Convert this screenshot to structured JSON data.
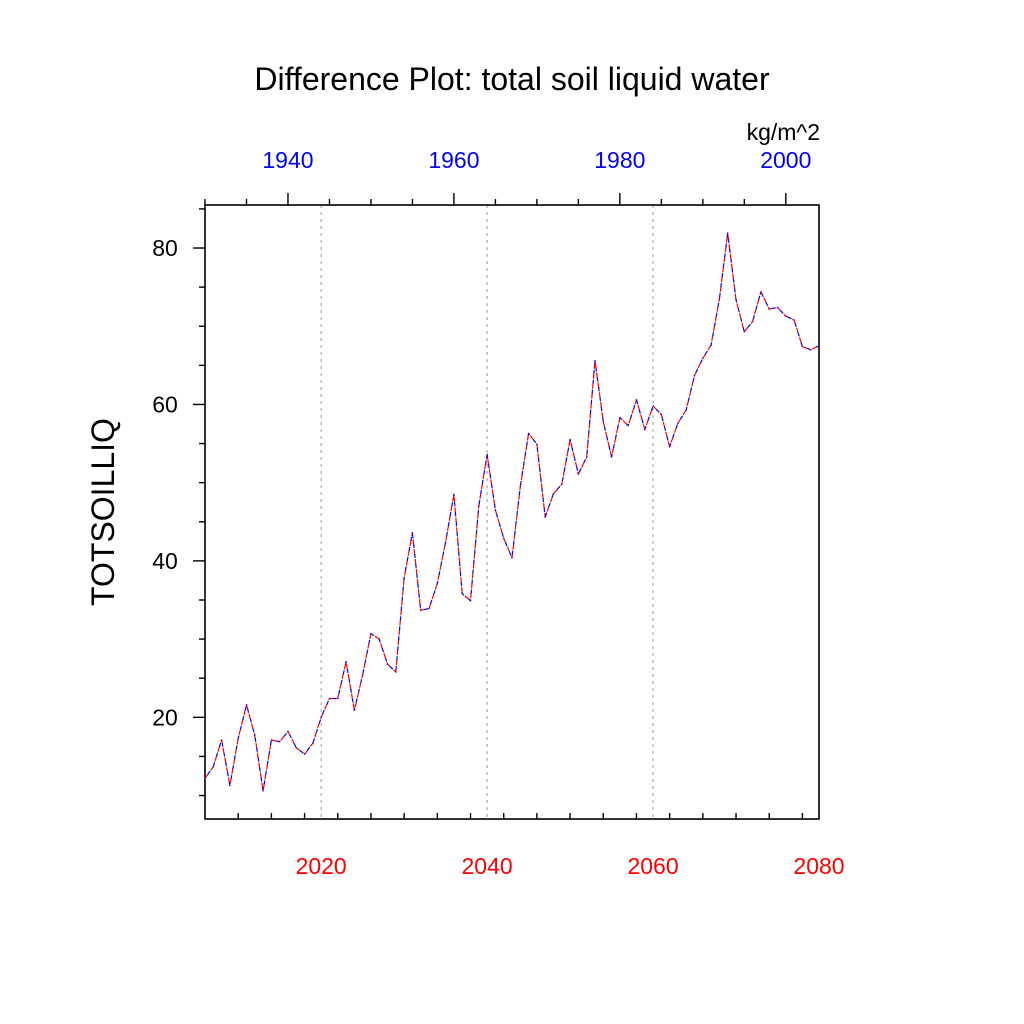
{
  "chart_data": {
    "type": "line",
    "title": "Difference Plot: total soil liquid water",
    "ylabel": "TOTSOILLIQ",
    "units": "kg/m^2",
    "ylim": [
      7,
      85.5
    ],
    "y_ticks": [
      20,
      40,
      60,
      80
    ],
    "y_minor_step": 5,
    "bottom_axis": {
      "color": "#ff0000",
      "range": [
        2006,
        2080
      ],
      "ticks": [
        2020,
        2040,
        2060,
        2080
      ],
      "minor_step": 4
    },
    "top_axis": {
      "color": "#0000ff",
      "range": [
        1930,
        2004
      ],
      "ticks": [
        1940,
        1960,
        1980,
        2000
      ],
      "minor_step": 5
    },
    "grid": "vertical dotted at bottom-axis major ticks",
    "series": [
      {
        "name": "difference",
        "style": "dashed red/blue",
        "x": [
          2006,
          2007,
          2008,
          2009,
          2010,
          2011,
          2012,
          2013,
          2014,
          2015,
          2016,
          2017,
          2018,
          2019,
          2020,
          2021,
          2022,
          2023,
          2024,
          2025,
          2026,
          2027,
          2028,
          2029,
          2030,
          2031,
          2032,
          2033,
          2034,
          2035,
          2036,
          2037,
          2038,
          2039,
          2040,
          2041,
          2042,
          2043,
          2044,
          2045,
          2046,
          2047,
          2048,
          2049,
          2050,
          2051,
          2052,
          2053,
          2054,
          2055,
          2056,
          2057,
          2058,
          2059,
          2060,
          2061,
          2062,
          2063,
          2064,
          2065,
          2066,
          2067,
          2068,
          2069,
          2070,
          2071,
          2072,
          2073,
          2074,
          2075,
          2076,
          2077,
          2078,
          2079,
          2080
        ],
        "values": [
          12.2,
          13.7,
          17.1,
          11.3,
          17.3,
          21.6,
          17.7,
          10.6,
          17.1,
          16.9,
          18.2,
          16.1,
          15.3,
          16.7,
          20.0,
          22.4,
          22.4,
          27.1,
          20.9,
          25.4,
          30.7,
          30.0,
          26.8,
          25.8,
          37.8,
          43.6,
          33.7,
          33.9,
          37.1,
          42.4,
          48.5,
          35.8,
          34.9,
          47.0,
          53.6,
          46.5,
          42.9,
          40.4,
          49.5,
          56.3,
          54.9,
          45.6,
          48.6,
          49.8,
          55.5,
          51.1,
          53.3,
          65.6,
          57.8,
          53.3,
          58.3,
          57.3,
          60.6,
          56.8,
          59.8,
          58.7,
          54.6,
          57.6,
          59.3,
          63.7,
          65.9,
          67.6,
          73.5,
          81.9,
          73.4,
          69.3,
          70.6,
          74.4,
          72.2,
          72.4,
          71.3,
          70.8,
          67.4,
          67.0,
          67.5
        ]
      }
    ]
  }
}
